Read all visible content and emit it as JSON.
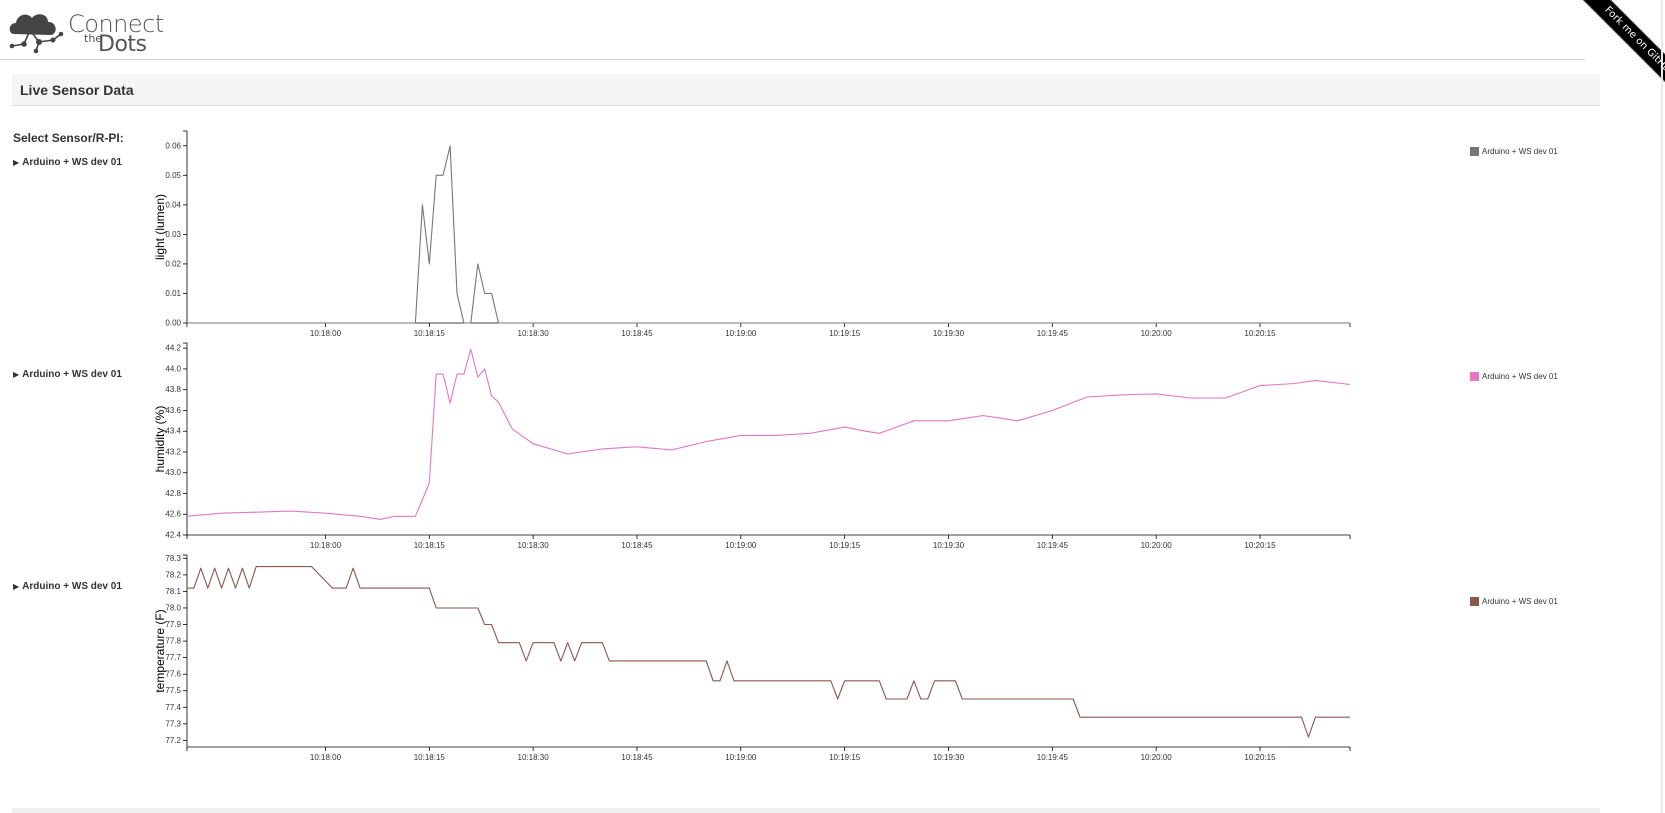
{
  "logo": {
    "connect": "Connect",
    "the": "the",
    "dots": "Dots"
  },
  "ribbon": {
    "label": "Fork me on GitHub"
  },
  "panel": {
    "title": "Live Sensor Data"
  },
  "sidebar": {
    "label": "Select Sensor/R-PI:",
    "items": [
      {
        "label": "Arduino + WS dev 01"
      },
      {
        "label": "Arduino + WS dev 01"
      },
      {
        "label": "Arduino + WS dev 01"
      }
    ]
  },
  "chart_data": [
    {
      "type": "line",
      "ylabel": "light (lumen)",
      "xlabel": "",
      "color": "#777777",
      "legend": "Arduino + WS dev 01",
      "ylim": [
        0,
        0.065
      ],
      "yticks": [
        0.0,
        0.01,
        0.02,
        0.03,
        0.04,
        0.05,
        0.06
      ],
      "ytick_labels": [
        "0.00",
        "0.01",
        "0.02",
        "0.03",
        "0.04",
        "0.05",
        "0.06"
      ],
      "xlim": [
        "10:17:40",
        "10:20:28"
      ],
      "xtick_labels": [
        "10:18:00",
        "10:18:15",
        "10:18:30",
        "10:18:45",
        "10:19:00",
        "10:19:15",
        "10:19:30",
        "10:19:45",
        "10:20:00",
        "10:20:15"
      ],
      "series": [
        {
          "x": [
            "10:17:40",
            "10:18:13",
            "10:18:14",
            "10:18:15",
            "10:18:16",
            "10:18:17",
            "10:18:18",
            "10:18:19",
            "10:18:20",
            "10:18:21",
            "10:18:22",
            "10:18:23",
            "10:18:24",
            "10:18:25",
            "10:18:26",
            "10:18:27",
            "10:18:28",
            "10:20:28"
          ],
          "values": [
            0,
            0,
            0.04,
            0.02,
            0.05,
            0.05,
            0.06,
            0.01,
            0,
            0,
            0.02,
            0.01,
            0.01,
            0,
            0,
            0,
            0,
            0
          ]
        }
      ]
    },
    {
      "type": "line",
      "ylabel": "humidity (%)",
      "xlabel": "",
      "color": "#e377c2",
      "legend": "Arduino + WS dev 01",
      "ylim": [
        42.4,
        44.25
      ],
      "yticks": [
        42.4,
        42.6,
        42.8,
        43.0,
        43.2,
        43.4,
        43.6,
        43.8,
        44.0,
        44.2
      ],
      "ytick_labels": [
        "42.4",
        "42.6",
        "42.8",
        "43.0",
        "43.2",
        "43.4",
        "43.6",
        "43.8",
        "44.0",
        "44.2"
      ],
      "xlim": [
        "10:17:40",
        "10:20:28"
      ],
      "xtick_labels": [
        "10:18:00",
        "10:18:15",
        "10:18:30",
        "10:18:45",
        "10:19:00",
        "10:19:15",
        "10:19:30",
        "10:19:45",
        "10:20:00",
        "10:20:15"
      ],
      "series": [
        {
          "x": [
            "10:17:40",
            "10:17:45",
            "10:17:50",
            "10:17:55",
            "10:18:00",
            "10:18:05",
            "10:18:08",
            "10:18:10",
            "10:18:13",
            "10:18:15",
            "10:18:16",
            "10:18:17",
            "10:18:18",
            "10:18:19",
            "10:18:20",
            "10:18:21",
            "10:18:22",
            "10:18:23",
            "10:18:24",
            "10:18:25",
            "10:18:27",
            "10:18:30",
            "10:18:35",
            "10:18:40",
            "10:18:45",
            "10:18:50",
            "10:18:55",
            "10:19:00",
            "10:19:05",
            "10:19:10",
            "10:19:15",
            "10:19:18",
            "10:19:20",
            "10:19:25",
            "10:19:30",
            "10:19:35",
            "10:19:40",
            "10:19:45",
            "10:19:50",
            "10:19:55",
            "10:20:00",
            "10:20:05",
            "10:20:10",
            "10:20:15",
            "10:20:20",
            "10:20:23",
            "10:20:28"
          ],
          "values": [
            42.58,
            42.61,
            42.62,
            42.63,
            42.61,
            42.58,
            42.55,
            42.58,
            42.58,
            42.9,
            43.95,
            43.95,
            43.67,
            43.95,
            43.95,
            44.19,
            43.92,
            44.0,
            43.74,
            43.68,
            43.42,
            43.28,
            43.18,
            43.23,
            43.25,
            43.22,
            43.3,
            43.36,
            43.36,
            43.38,
            43.44,
            43.4,
            43.38,
            43.5,
            43.5,
            43.55,
            43.5,
            43.6,
            43.73,
            43.75,
            43.76,
            43.72,
            43.72,
            43.84,
            43.86,
            43.89,
            43.85
          ]
        }
      ]
    },
    {
      "type": "line",
      "ylabel": "temperature (F)",
      "xlabel": "",
      "color": "#8c564b",
      "legend": "Arduino + WS dev 01",
      "ylim": [
        77.16,
        78.32
      ],
      "yticks": [
        77.2,
        77.3,
        77.4,
        77.5,
        77.6,
        77.7,
        77.8,
        77.9,
        78.0,
        78.1,
        78.2,
        78.3
      ],
      "ytick_labels": [
        "77.2",
        "77.3",
        "77.4",
        "77.5",
        "77.6",
        "77.7",
        "77.8",
        "77.9",
        "78.0",
        "78.1",
        "78.2",
        "78.3"
      ],
      "xlim": [
        "10:17:40",
        "10:20:28"
      ],
      "xtick_labels": [
        "10:18:00",
        "10:18:15",
        "10:18:30",
        "10:18:45",
        "10:19:00",
        "10:19:15",
        "10:19:30",
        "10:19:45",
        "10:20:00",
        "10:20:15"
      ],
      "series": [
        {
          "x": [
            "10:17:40",
            "10:17:41",
            "10:17:42",
            "10:17:43",
            "10:17:44",
            "10:17:45",
            "10:17:46",
            "10:17:47",
            "10:17:48",
            "10:17:49",
            "10:17:50",
            "10:17:54",
            "10:17:58",
            "10:18:01",
            "10:18:03",
            "10:18:04",
            "10:18:05",
            "10:18:15",
            "10:18:16",
            "10:18:17",
            "10:18:22",
            "10:18:23",
            "10:18:24",
            "10:18:25",
            "10:18:26",
            "10:18:28",
            "10:18:29",
            "10:18:30",
            "10:18:33",
            "10:18:34",
            "10:18:35",
            "10:18:36",
            "10:18:37",
            "10:18:40",
            "10:18:41",
            "10:18:55",
            "10:18:56",
            "10:18:57",
            "10:18:58",
            "10:18:59",
            "10:19:00",
            "10:19:13",
            "10:19:14",
            "10:19:15",
            "10:19:20",
            "10:19:21",
            "10:19:24",
            "10:19:25",
            "10:19:26",
            "10:19:27",
            "10:19:28",
            "10:19:31",
            "10:19:32",
            "10:19:48",
            "10:19:49",
            "10:20:21",
            "10:20:22",
            "10:20:23",
            "10:20:28"
          ],
          "values": [
            78.12,
            78.12,
            78.24,
            78.12,
            78.24,
            78.12,
            78.24,
            78.12,
            78.24,
            78.12,
            78.25,
            78.25,
            78.25,
            78.12,
            78.12,
            78.24,
            78.12,
            78.12,
            78.0,
            78.0,
            78.0,
            77.9,
            77.9,
            77.79,
            77.79,
            77.79,
            77.68,
            77.79,
            77.79,
            77.68,
            77.79,
            77.68,
            77.79,
            77.79,
            77.68,
            77.68,
            77.56,
            77.56,
            77.68,
            77.56,
            77.56,
            77.56,
            77.45,
            77.56,
            77.56,
            77.45,
            77.45,
            77.56,
            77.45,
            77.45,
            77.56,
            77.56,
            77.45,
            77.45,
            77.34,
            77.34,
            77.22,
            77.34,
            77.34
          ]
        }
      ]
    }
  ]
}
